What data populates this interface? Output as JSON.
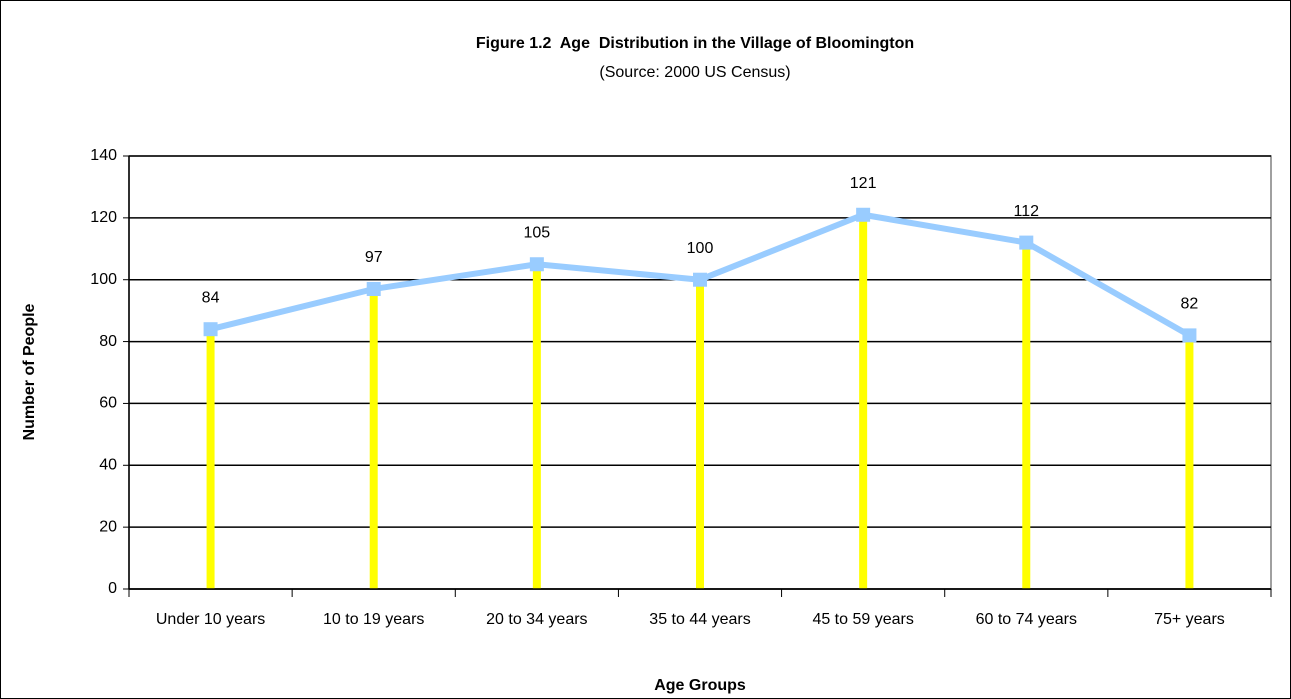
{
  "chart_data": {
    "type": "line",
    "title": "Figure 1.2  Age  Distribution in the Village of Bloomington",
    "subtitle": "(Source: 2000 US Census)",
    "x_label": "Age Groups",
    "y_label": "Number of People",
    "categories": [
      "Under 10 years",
      "10 to 19 years",
      "20 to 34 years",
      "35 to 44 years",
      "45 to 59 years",
      "60 to 74 years",
      "75+ years"
    ],
    "values": [
      84,
      97,
      105,
      100,
      121,
      112,
      82
    ],
    "color": "#99ccff",
    "drop_line_color": "#ffff00",
    "marker": "square",
    "ylim": [
      0,
      140
    ],
    "yticks": [
      0,
      20,
      40,
      60,
      80,
      100,
      120,
      140
    ],
    "grid": true
  }
}
